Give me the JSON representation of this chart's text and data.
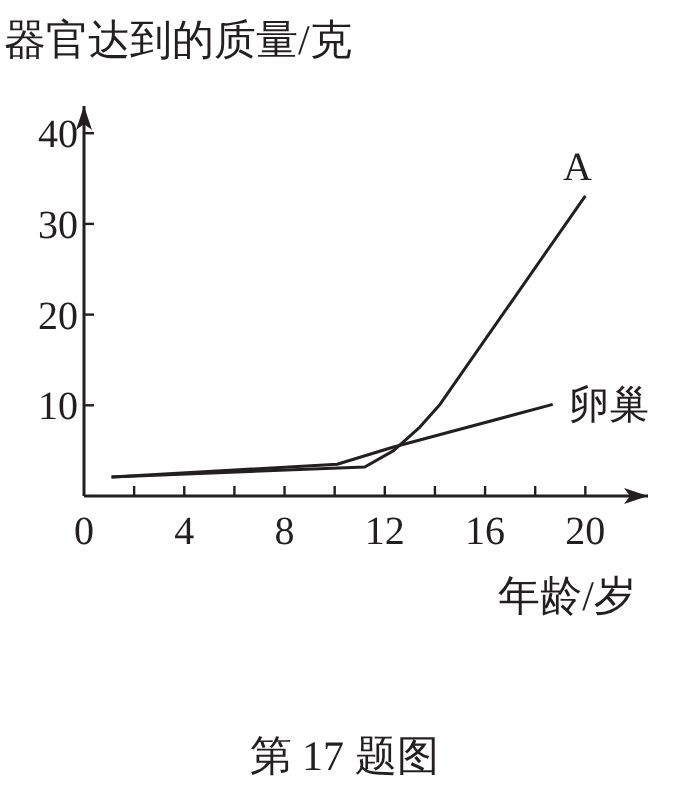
{
  "chart_data": {
    "type": "line",
    "ylabel": "器官达到的质量/克",
    "xlabel": "年龄/岁",
    "annotations": [
      "第 17 题图"
    ],
    "xlim": [
      0,
      22.5
    ],
    "ylim": [
      0,
      43
    ],
    "xticks": [
      0,
      {
        "value": 2,
        "label": null
      },
      4,
      {
        "value": 6,
        "label": null
      },
      8,
      {
        "value": 10,
        "label": null
      },
      12,
      {
        "value": 14,
        "label": null
      },
      16,
      {
        "value": 18,
        "label": null
      },
      20
    ],
    "yticks": [
      10,
      20,
      30,
      40
    ],
    "series": [
      {
        "name": "A",
        "color": "#231f20",
        "x": [
          1.1,
          11.2,
          12.35,
          13.4,
          14.2,
          20
        ],
        "values": [
          2.1,
          3.2,
          5.0,
          7.6,
          10.1,
          33.1
        ]
      },
      {
        "name": "卵巢",
        "color": "#231f20",
        "x": [
          1.1,
          10.1,
          12.35,
          18.7
        ],
        "values": [
          2.1,
          3.5,
          5.4,
          10.1
        ]
      }
    ]
  }
}
